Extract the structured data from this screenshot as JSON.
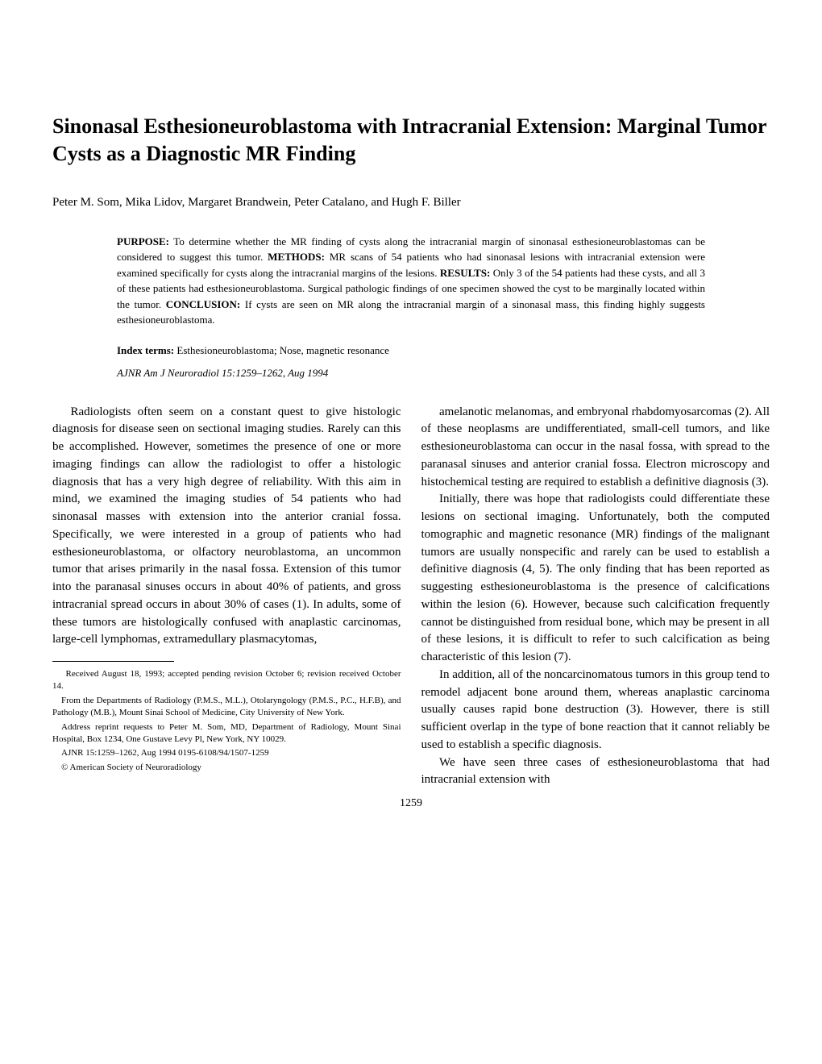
{
  "title": "Sinonasal Esthesioneuroblastoma with Intracranial Extension: Marginal Tumor Cysts as a Diagnostic MR Finding",
  "authors": "Peter M. Som, Mika Lidov, Margaret Brandwein, Peter Catalano, and Hugh F. Biller",
  "abstract": {
    "purpose_label": "PURPOSE:",
    "purpose": " To determine whether the MR finding of cysts along the intracranial margin of sinonasal esthesioneuroblastomas can be considered to suggest this tumor. ",
    "methods_label": "METHODS:",
    "methods": " MR scans of 54 patients who had sinonasal lesions with intracranial extension were examined specifically for cysts along the intracranial margins of the lesions. ",
    "results_label": "RESULTS:",
    "results": " Only 3 of the 54 patients had these cysts, and all 3 of these patients had esthesioneuroblastoma. Surgical pathologic findings of one specimen showed the cyst to be marginally located within the tumor. ",
    "conclusion_label": "CONCLUSION:",
    "conclusion": " If cysts are seen on MR along the intracranial margin of a sinonasal mass, this finding highly suggests esthesioneuroblastoma."
  },
  "index_terms": {
    "label": "Index terms:",
    "text": " Esthesioneuroblastoma; Nose, magnetic resonance"
  },
  "citation": "AJNR Am J Neuroradiol 15:1259–1262, Aug 1994",
  "body": {
    "col1_p1": "Radiologists often seem on a constant quest to give histologic diagnosis for disease seen on sectional imaging studies. Rarely can this be accomplished. However, sometimes the presence of one or more imaging findings can allow the radiologist to offer a histologic diagnosis that has a very high degree of reliability. With this aim in mind, we examined the imaging studies of 54 patients who had sinonasal masses with extension into the anterior cranial fossa. Specifically, we were interested in a group of patients who had esthesioneuroblastoma, or olfactory neuroblastoma, an uncommon tumor that arises primarily in the nasal fossa. Extension of this tumor into the paranasal sinuses occurs in about 40% of patients, and gross intracranial spread occurs in about 30% of cases (1). In adults, some of these tumors are histologically confused with anaplastic carcinomas, large-cell lymphomas, extramedullary plasmacytomas,",
    "col2_p1": "amelanotic melanomas, and embryonal rhabdomyosarcomas (2). All of these neoplasms are undifferentiated, small-cell tumors, and like esthesioneuroblastoma can occur in the nasal fossa, with spread to the paranasal sinuses and anterior cranial fossa. Electron microscopy and histochemical testing are required to establish a definitive diagnosis (3).",
    "col2_p2": "Initially, there was hope that radiologists could differentiate these lesions on sectional imaging. Unfortunately, both the computed tomographic and magnetic resonance (MR) findings of the malignant tumors are usually nonspecific and rarely can be used to establish a definitive diagnosis (4, 5). The only finding that has been reported as suggesting esthesioneuroblastoma is the presence of calcifications within the lesion (6). However, because such calcification frequently cannot be distinguished from residual bone, which may be present in all of these lesions, it is difficult to refer to such calcification as being characteristic of this lesion (7).",
    "col2_p3": "In addition, all of the noncarcinomatous tumors in this group tend to remodel adjacent bone around them, whereas anaplastic carcinoma usually causes rapid bone destruction (3). However, there is still sufficient overlap in the type of bone reaction that it cannot reliably be used to establish a specific diagnosis.",
    "col2_p4": "We have seen three cases of esthesioneuroblastoma that had intracranial extension with"
  },
  "footnotes": {
    "f1": "Received August 18, 1993; accepted pending revision October 6; revision received October 14.",
    "f2": "From the Departments of Radiology (P.M.S., M.L.), Otolaryngology (P.M.S., P.C., H.F.B), and Pathology (M.B.), Mount Sinai School of Medicine, City University of New York.",
    "f3": "Address reprint requests to Peter M. Som, MD, Department of Radiology, Mount Sinai Hospital, Box 1234, One Gustave Levy Pl, New York, NY 10029.",
    "f4": "AJNR 15:1259–1262, Aug 1994 0195-6108/94/1507-1259",
    "f5": "© American Society of Neuroradiology"
  },
  "page_number": "1259"
}
